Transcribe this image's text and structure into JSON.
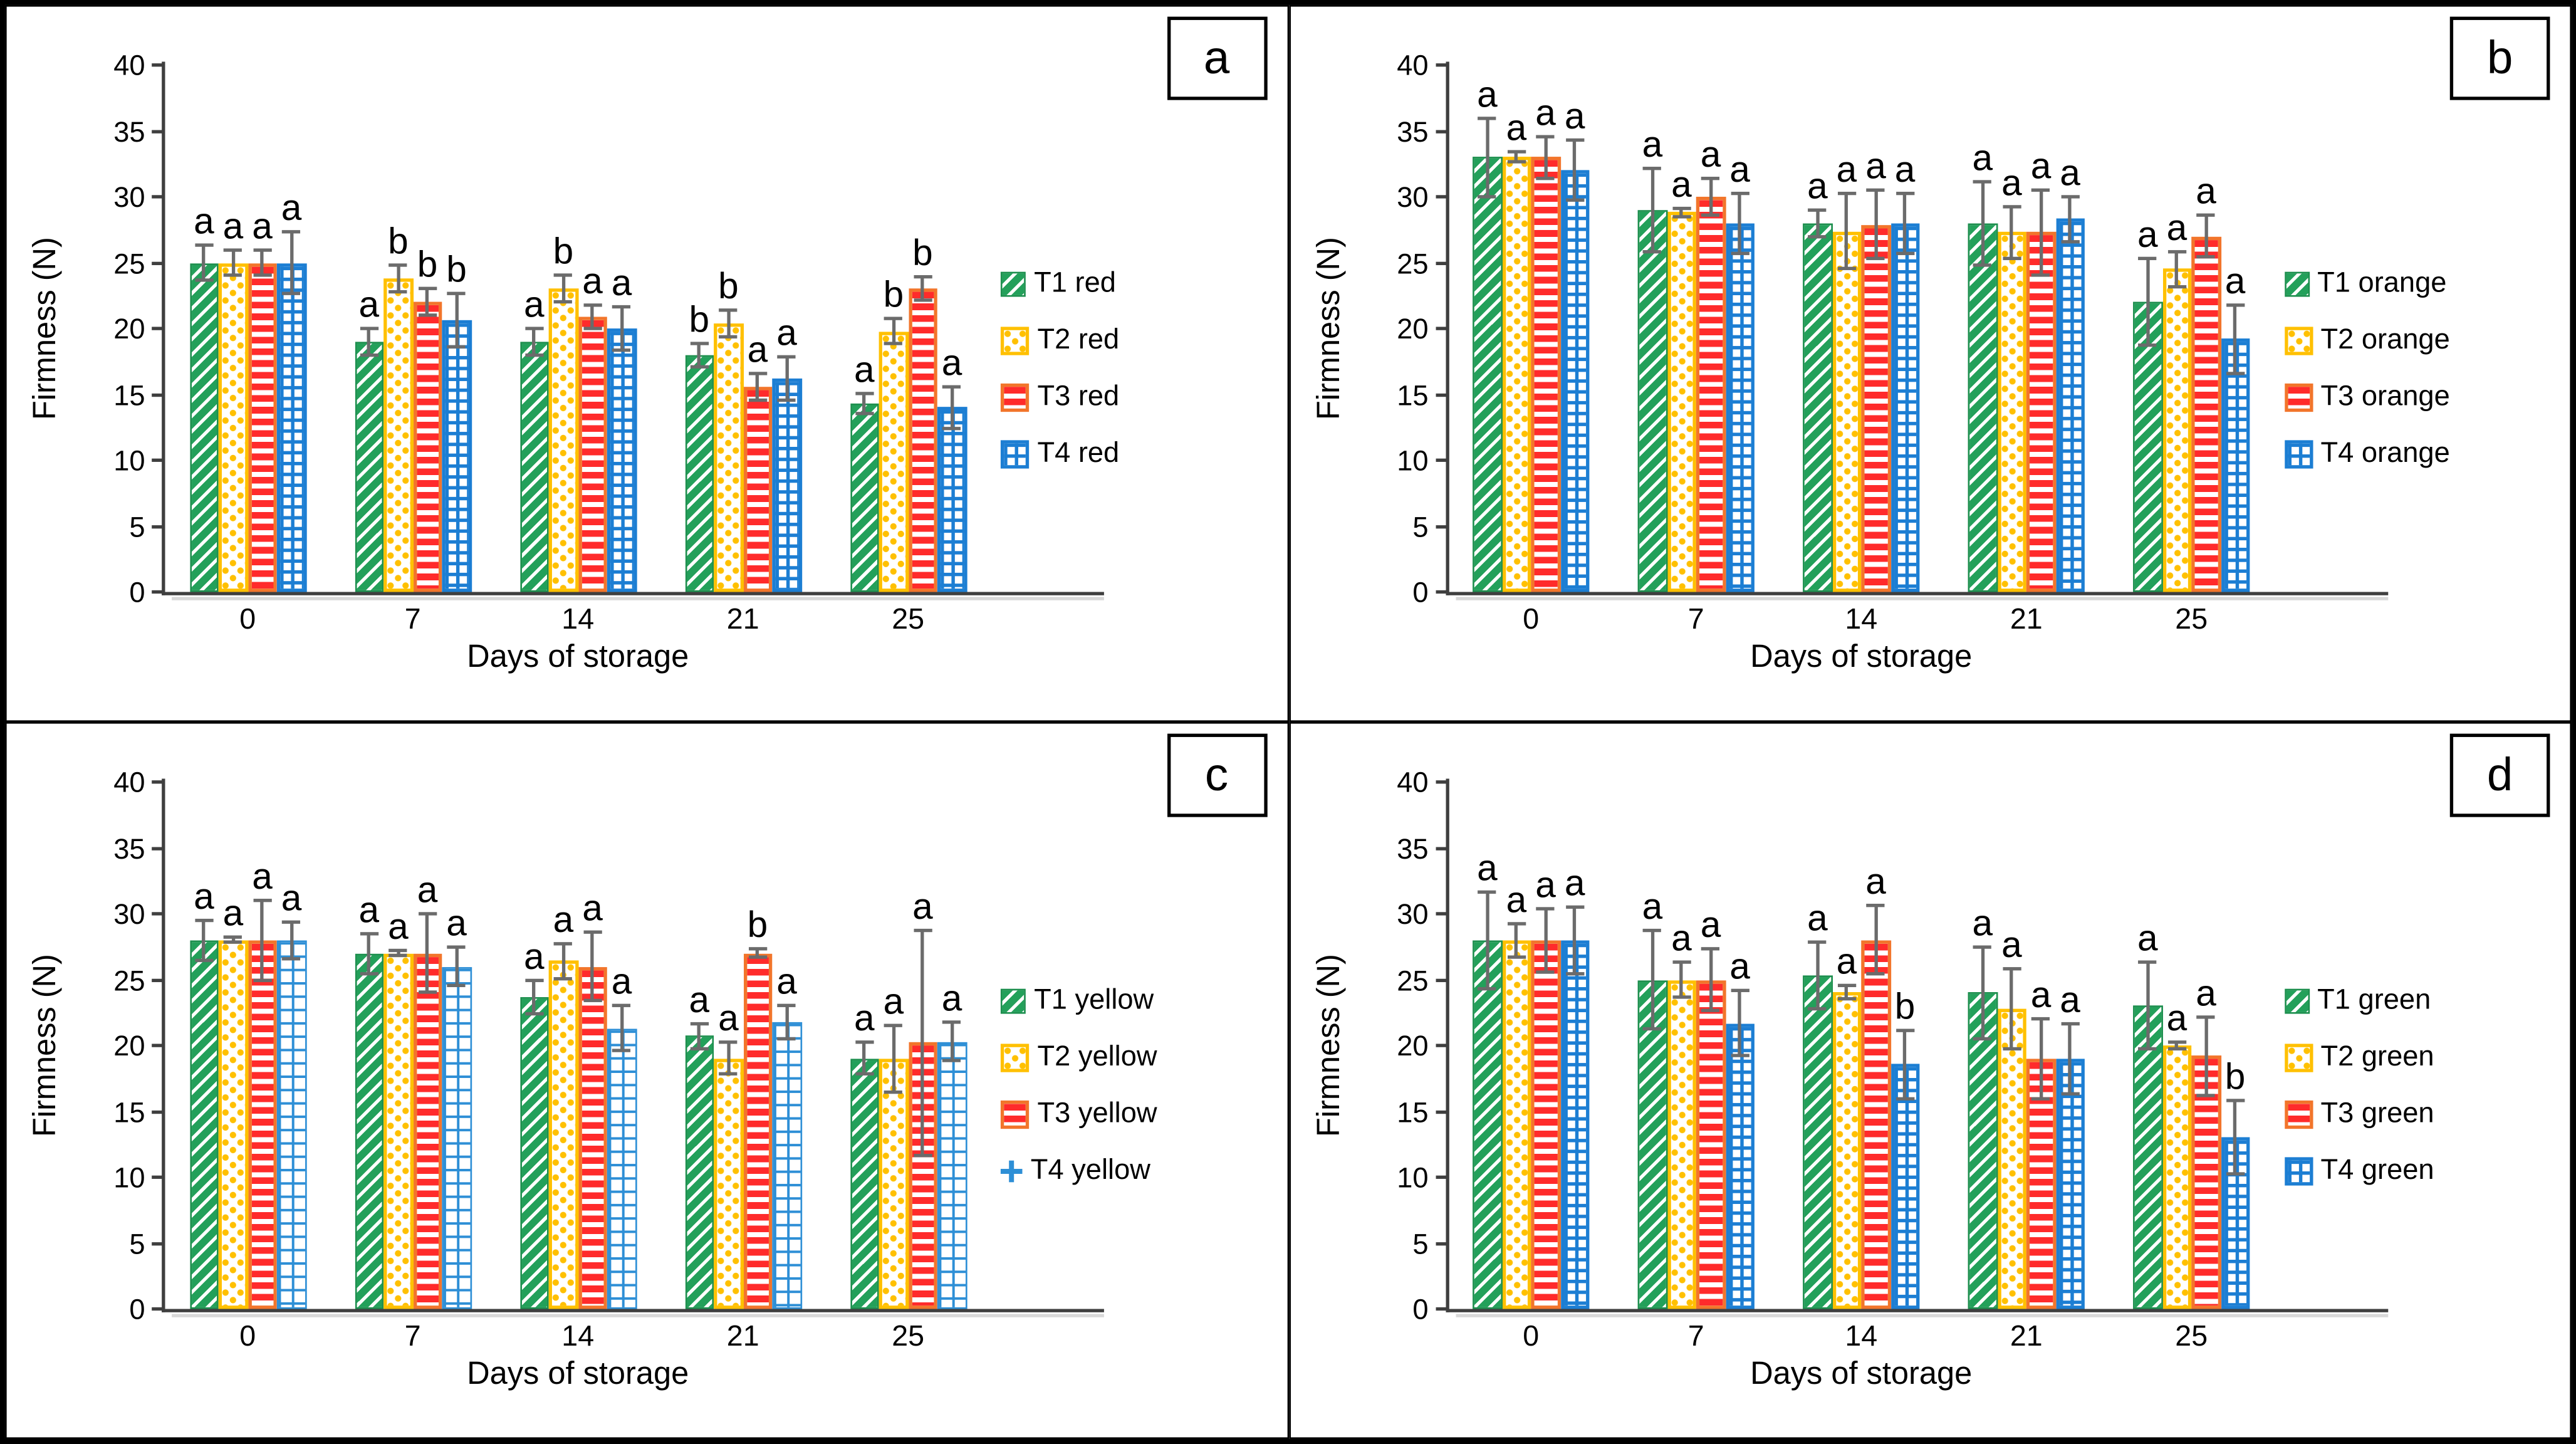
{
  "figure": {
    "ylabel": "Firmness (N)",
    "xlabel": "Days of storage",
    "y_ticks": [
      0,
      5,
      10,
      15,
      20,
      25,
      30,
      35,
      40
    ],
    "ylim": [
      0,
      40
    ],
    "categories": [
      "0",
      "7",
      "14",
      "21",
      "25"
    ]
  },
  "colors": {
    "t1_green": "#23A05A",
    "t2_gold": "#FFC000",
    "t3_red": "#FF2B2B",
    "t3_border_orange": "#F2752B",
    "t4_blue": "#1C7ED3",
    "t4_blue_light": "#2E8FD6",
    "error_bar_gray": "#6B6B6B",
    "axis_gray": "#3F3F3F",
    "text_black": "#000000",
    "background": "#FFFFFF"
  },
  "chart_data": [
    {
      "type": "bar",
      "panel_label": "a",
      "title": "",
      "xlabel": "Days of storage",
      "ylabel": "Firmness (N)",
      "ylim": [
        0,
        40
      ],
      "grid": false,
      "legend_position": "right",
      "categories": [
        "0",
        "7",
        "14",
        "21",
        "25"
      ],
      "series": [
        {
          "name": "T1 red",
          "pattern": "diag-green",
          "legend_icon": "swatch",
          "values": [
            25,
            19,
            19,
            18,
            14.3
          ],
          "errors": [
            1.3,
            1.0,
            1.0,
            0.9,
            0.8
          ],
          "letters": [
            "a",
            "a",
            "a",
            "b",
            "a"
          ]
        },
        {
          "name": "T2 red",
          "pattern": "dots-gold",
          "legend_icon": "swatch",
          "values": [
            25,
            23.8,
            23,
            20.4,
            19.8
          ],
          "errors": [
            1.0,
            1.0,
            1.0,
            1.0,
            1.0
          ],
          "letters": [
            "a",
            "b",
            "b",
            "b",
            "b"
          ]
        },
        {
          "name": "T3 red",
          "pattern": "hstripe-red",
          "legend_icon": "swatch",
          "values": [
            25,
            22,
            20.9,
            15.6,
            23
          ],
          "errors": [
            1.0,
            1.0,
            0.9,
            1.0,
            0.9
          ],
          "letters": [
            "a",
            "b",
            "a",
            "a",
            "b"
          ]
        },
        {
          "name": "T4 red",
          "pattern": "grid-blue",
          "legend_icon": "swatch",
          "values": [
            25,
            20.6,
            20,
            16.2,
            14
          ],
          "errors": [
            2.3,
            2.0,
            1.6,
            1.6,
            1.6
          ],
          "letters": [
            "a",
            "b",
            "a",
            "a",
            "a"
          ]
        }
      ]
    },
    {
      "type": "bar",
      "panel_label": "b",
      "title": "",
      "xlabel": "Days of storage",
      "ylabel": "Firmness (N)",
      "ylim": [
        0,
        40
      ],
      "grid": false,
      "legend_position": "right",
      "categories": [
        "0",
        "7",
        "14",
        "21",
        "25"
      ],
      "series": [
        {
          "name": "T1 orange",
          "pattern": "diag-green",
          "legend_icon": "swatch",
          "values": [
            33,
            29,
            28,
            28,
            22
          ],
          "errors": [
            3.0,
            3.2,
            1.0,
            3.2,
            3.3
          ],
          "letters": [
            "a",
            "a",
            "a",
            "a",
            "a"
          ]
        },
        {
          "name": "T2 orange",
          "pattern": "dots-gold",
          "legend_icon": "swatch",
          "values": [
            33,
            28.8,
            27.4,
            27.3,
            24.5
          ],
          "errors": [
            0.4,
            0.3,
            2.8,
            2.0,
            1.3
          ],
          "letters": [
            "a",
            "a",
            "a",
            "a",
            "a"
          ]
        },
        {
          "name": "T3 orange",
          "pattern": "hstripe-red",
          "legend_icon": "swatch",
          "values": [
            33,
            30,
            27.9,
            27.3,
            27
          ],
          "errors": [
            1.6,
            1.4,
            2.6,
            3.2,
            1.6
          ],
          "letters": [
            "a",
            "a",
            "a",
            "a",
            "a"
          ]
        },
        {
          "name": "T4 orange",
          "pattern": "grid-blue",
          "legend_icon": "swatch",
          "values": [
            32,
            28,
            28,
            28.3,
            19.2
          ],
          "errors": [
            2.3,
            2.3,
            2.3,
            1.7,
            2.6
          ],
          "letters": [
            "a",
            "a",
            "a",
            "a",
            "a"
          ]
        }
      ]
    },
    {
      "type": "bar",
      "panel_label": "c",
      "title": "",
      "xlabel": "Days of storage",
      "ylabel": "Firmness (N)",
      "ylim": [
        0,
        40
      ],
      "grid": false,
      "legend_position": "right",
      "categories": [
        "0",
        "7",
        "14",
        "21",
        "25"
      ],
      "series": [
        {
          "name": "T1 yellow",
          "pattern": "diag-green",
          "legend_icon": "swatch",
          "values": [
            28,
            27,
            23.7,
            20.7,
            19
          ],
          "errors": [
            1.5,
            1.5,
            1.3,
            0.9,
            1.2
          ],
          "letters": [
            "a",
            "a",
            "a",
            "a",
            "a"
          ]
        },
        {
          "name": "T2 yellow",
          "pattern": "dots-gold",
          "legend_icon": "swatch",
          "values": [
            28,
            27,
            26.4,
            19,
            19
          ],
          "errors": [
            0.2,
            0.2,
            1.3,
            1.2,
            2.5
          ],
          "letters": [
            "a",
            "a",
            "a",
            "a",
            "a"
          ]
        },
        {
          "name": "T3 yellow",
          "pattern": "hstripe-red",
          "legend_icon": "swatch",
          "values": [
            28,
            27,
            26,
            27,
            20.2
          ],
          "errors": [
            3.0,
            3.0,
            2.6,
            0.3,
            8.5
          ],
          "letters": [
            "a",
            "a",
            "a",
            "b",
            "a"
          ]
        },
        {
          "name": "T4 yellow",
          "pattern": "grid-blue-light",
          "legend_icon": "plus",
          "values": [
            28,
            26,
            21.3,
            21.8,
            20.3
          ],
          "errors": [
            1.4,
            1.5,
            1.7,
            1.3,
            1.5
          ],
          "letters": [
            "a",
            "a",
            "a",
            "a",
            "a"
          ]
        }
      ]
    },
    {
      "type": "bar",
      "panel_label": "d",
      "title": "",
      "xlabel": "Days of storage",
      "ylabel": "Firmness (N)",
      "ylim": [
        0,
        40
      ],
      "grid": false,
      "legend_position": "right",
      "categories": [
        "0",
        "7",
        "14",
        "21",
        "25"
      ],
      "series": [
        {
          "name": "T1 green",
          "pattern": "diag-green",
          "legend_icon": "swatch",
          "values": [
            28,
            25,
            25.3,
            24,
            23
          ],
          "errors": [
            3.7,
            3.7,
            2.5,
            3.5,
            3.3
          ],
          "letters": [
            "a",
            "a",
            "a",
            "a",
            "a"
          ]
        },
        {
          "name": "T2 green",
          "pattern": "dots-gold",
          "legend_icon": "swatch",
          "values": [
            28,
            25,
            24,
            22.8,
            20
          ],
          "errors": [
            1.3,
            1.3,
            0.5,
            3.0,
            0.3
          ],
          "letters": [
            "a",
            "a",
            "a",
            "a",
            "a"
          ]
        },
        {
          "name": "T3 green",
          "pattern": "hstripe-red",
          "legend_icon": "swatch",
          "values": [
            28,
            25,
            28,
            19,
            19.2
          ],
          "errors": [
            2.4,
            2.3,
            2.6,
            3.0,
            3.0
          ],
          "letters": [
            "a",
            "a",
            "a",
            "a",
            "a"
          ]
        },
        {
          "name": "T4 green",
          "pattern": "grid-blue",
          "legend_icon": "swatch",
          "values": [
            28,
            21.7,
            18.6,
            19,
            13
          ],
          "errors": [
            2.5,
            2.5,
            2.6,
            2.7,
            2.8
          ],
          "letters": [
            "a",
            "a",
            "b",
            "a",
            "b"
          ]
        }
      ]
    }
  ]
}
